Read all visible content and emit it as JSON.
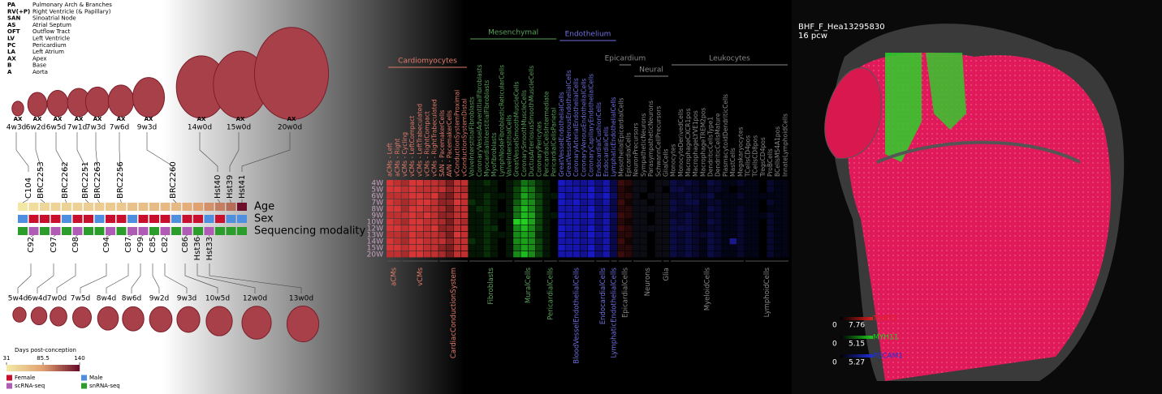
{
  "abbreviations": [
    {
      "abbr": "PA",
      "meaning": "Pulmonary Arch & Branches"
    },
    {
      "abbr": "RV(+P)",
      "meaning": "Right Ventricle (& Papillary)"
    },
    {
      "abbr": "SAN",
      "meaning": "Sinoatrial Node"
    },
    {
      "abbr": "AS",
      "meaning": "Atrial Septum"
    },
    {
      "abbr": "OFT",
      "meaning": "Outflow Tract"
    },
    {
      "abbr": "LV",
      "meaning": "Left Ventricle"
    },
    {
      "abbr": "PC",
      "meaning": "Pericardium"
    },
    {
      "abbr": "LA",
      "meaning": "Left Atrium"
    },
    {
      "abbr": "AX",
      "meaning": "Apex"
    },
    {
      "abbr": "B",
      "meaning": "Base"
    },
    {
      "abbr": "A",
      "meaning": "Aorta"
    }
  ],
  "samples": [
    {
      "id": "C104",
      "stage": "4w3d",
      "days": 31,
      "sex": "Male",
      "modality": "snRNA-seq",
      "label_side": "above",
      "view": "AX"
    },
    {
      "id": "C92",
      "stage": "5w4d",
      "days": 39,
      "sex": "Female",
      "modality": "scRNA-seq",
      "label_side": "below"
    },
    {
      "id": "BRC2253",
      "stage": "6w2d",
      "days": 44,
      "sex": "Female",
      "modality": "snRNA-seq",
      "label_side": "above",
      "view": "AX"
    },
    {
      "id": "C97",
      "stage": "6w4d",
      "days": 46,
      "sex": "Female",
      "modality": "scRNA-seq",
      "label_side": "below"
    },
    {
      "id": "BRC2262",
      "stage": "6w5d",
      "days": 47,
      "sex": "Male",
      "modality": "snRNA-seq",
      "label_side": "above",
      "view": "AX"
    },
    {
      "id": "C98",
      "stage": "7w0d",
      "days": 49,
      "sex": "Female",
      "modality": "scRNA-seq",
      "label_side": "below"
    },
    {
      "id": "BRC2251",
      "stage": "7w1d",
      "days": 50,
      "sex": "Female",
      "modality": "snRNA-seq",
      "label_side": "above",
      "view": "AX"
    },
    {
      "id": "BRC2263",
      "stage": "7w3d",
      "days": 52,
      "sex": "Male",
      "modality": "snRNA-seq",
      "label_side": "above",
      "view": "AX"
    },
    {
      "id": "C94",
      "stage": "7w5d",
      "days": 54,
      "sex": "Female",
      "modality": "scRNA-seq",
      "label_side": "below"
    },
    {
      "id": "BRC2256",
      "stage": "7w6d",
      "days": 55,
      "sex": "Female",
      "modality": "snRNA-seq",
      "label_side": "above",
      "view": "AX"
    },
    {
      "id": "C87",
      "stage": "8w4d",
      "days": 60,
      "sex": "Male",
      "modality": "scRNA-seq",
      "label_side": "below"
    },
    {
      "id": "C99",
      "stage": "8w6d",
      "days": 62,
      "sex": "Female",
      "modality": "scRNA-seq",
      "label_side": "below"
    },
    {
      "id": "C85",
      "stage": "9w2d",
      "days": 65,
      "sex": "Female",
      "modality": "snRNA-seq",
      "label_side": "below"
    },
    {
      "id": "C82",
      "stage": "9w3d",
      "days": 66,
      "sex": "Female",
      "modality": "scRNA-seq",
      "label_side": "below"
    },
    {
      "id": "BRC2260",
      "stage": "9w3d",
      "days": 66,
      "sex": "Male",
      "modality": "snRNA-seq",
      "label_side": "above",
      "view": "AX"
    },
    {
      "id": "C86",
      "stage": "10w5d",
      "days": 75,
      "sex": "Female",
      "modality": "scRNA-seq",
      "label_side": "below"
    },
    {
      "id": "Hst36",
      "stage": "12w0d",
      "days": 84,
      "sex": "Female",
      "modality": "snRNA-seq",
      "label_side": "below"
    },
    {
      "id": "Hst33",
      "stage": "13w0d",
      "days": 91,
      "sex": "Male",
      "modality": "scRNA-seq",
      "label_side": "below"
    },
    {
      "id": "Hst40",
      "stage": "14w0d",
      "days": 98,
      "sex": "Female",
      "modality": "snRNA-seq",
      "label_side": "above",
      "view": "AX"
    },
    {
      "id": "Hst39",
      "stage": "15w0d",
      "days": 105,
      "sex": "Male",
      "modality": "snRNA-seq",
      "label_side": "above",
      "view": "AX"
    },
    {
      "id": "Hst41",
      "stage": "20w0d",
      "days": 140,
      "sex": "Male",
      "modality": "snRNA-seq",
      "label_side": "above",
      "view": "AX"
    }
  ],
  "track_labels": [
    "Age",
    "Sex",
    "Sequencing modality"
  ],
  "age_scale": {
    "title": "Days post-conception",
    "ticks": [
      31,
      85.5,
      140
    ],
    "colors": [
      "#f3e7a6",
      "#e0a070",
      "#6b0f2a"
    ]
  },
  "sex_legend": [
    {
      "label": "Female",
      "color": "#c8102e"
    },
    {
      "label": "Male",
      "color": "#4f8fe0"
    }
  ],
  "modality_legend": [
    {
      "label": "scRNA-seq",
      "color": "#b05bb5"
    },
    {
      "label": "snRNA-seq",
      "color": "#2a9d2a"
    }
  ],
  "heatmap": {
    "rows": [
      "4W",
      "5W",
      "6W",
      "7W",
      "8W",
      "9W",
      "10W",
      "12W",
      "13W",
      "14W",
      "15W",
      "20W"
    ],
    "groups": [
      {
        "name": "Cardiomyocytes",
        "color": [
          240,
          60,
          60
        ],
        "label_color": "#e07a6a",
        "subgroups": [
          {
            "name": "aCMs",
            "columns": [
              "aCMs - Left",
              "aCMs - Right"
            ]
          },
          {
            "name": "vCMs",
            "columns": [
              "vCMs - Cycling",
              "vCMs - LeftCompact",
              "vCMs - LeftTrabeculated",
              "vCMs - RightCompact",
              "vCMs - RightTrabeculated"
            ]
          },
          {
            "name": "CardiacConductionSystem",
            "columns": [
              "SAN - PacemakerCells",
              "AVN - PacemakerCells",
              "vConductionSystemProximal",
              "vConductionSystemDistal"
            ]
          }
        ]
      },
      {
        "name": "Mesenchymal",
        "color": [
          40,
          230,
          40
        ],
        "label_color": "#5aa05a",
        "subgroups": [
          {
            "name": "Fibroblasts",
            "columns": [
              "ValveInterstitialFibroblasts",
              "CoronaryVesselAdventitialFibroblasts",
              "MyocardialInterstitialFibroblasts",
              "Myofibroblasts",
              "LymphNodeFibroblasticReticularCells",
              "ValveInterstitialCells"
            ]
          },
          {
            "name": "MuralCells",
            "columns": [
              "GreatVesselSmoothMuscleCells",
              "CoronarySmoothMuscleCells",
              "DuctusArteriosusSmoothMuscleCells",
              "CoronaryPericytes"
            ]
          },
          {
            "name": "PericardialCells",
            "columns": [
              "PericardialCellsIntermediate",
              "PericardialCellsParietal"
            ]
          }
        ]
      },
      {
        "name": "Endothelium",
        "color": [
          30,
          30,
          245
        ],
        "label_color": "#7070e0",
        "subgroups": [
          {
            "name": "BloodVesselEndothelialCells",
            "columns": [
              "GreatVesselEndothelialCells",
              "GreatVesselVenousEndothelialCells",
              "CoronaryArterialEndothelialCells",
              "CoronaryVenousEndothelialCells",
              "CoronaryCapillaryEndothelialCells"
            ]
          },
          {
            "name": "EndocardialCells",
            "columns": [
              "EndocardialCushionCells",
              "EndocardialCells"
            ]
          },
          {
            "name": "LymphaticEndothelialCells",
            "columns": [
              "LymphaticEndothelialCells"
            ]
          }
        ]
      },
      {
        "name": "Epicardium",
        "color": [
          200,
          40,
          40
        ],
        "label_color": "#888888",
        "subgroups": [
          {
            "name": "EpicardialCells",
            "columns": [
              "MesothelialEpicardialCells",
              "EpicardialCells"
            ]
          }
        ]
      },
      {
        "name": "Neural",
        "color": [
          120,
          120,
          200
        ],
        "label_color": "#888888",
        "subgroups": [
          {
            "name": "Neurons",
            "columns": [
              "NeuronPrecursors",
              "SympatheticNeurons",
              "ParasympatheticNeurons",
              "SchwannCellPrecursors"
            ]
          },
          {
            "name": "Glia",
            "columns": [
              "GlialCells"
            ]
          }
        ]
      },
      {
        "name": "Leukocytes",
        "color": [
          40,
          40,
          230
        ],
        "label_color": "#888888",
        "subgroups": [
          {
            "name": "MyeloidCells",
            "columns": [
              "Monocytes",
              "MonocyteDerivedCells",
              "MacrophageCXCR1pos",
              "MacrophageLYVE1pos",
              "MacrophageTREM2pos",
              "DendriticCellsType1",
              "DendriticCellsMature",
              "PlasmacytoidDendriticCells",
              "MastCells",
              "Megakaryocytes"
            ]
          },
          {
            "name": "LymphoidCells",
            "columns": [
              "TCellsCD4pos",
              "TCellsCD8pos",
              "TregsCD4pos",
              "ProBCells",
              "BCellsMS4A1pos",
              "InnateLymphoidCells"
            ]
          }
        ]
      }
    ],
    "values": [
      [
        0.9,
        0.8,
        0.7,
        0.9,
        0.9,
        0.8,
        0.8,
        0.7,
        0.5,
        0.8,
        0.8,
        0.1,
        0.1,
        0.2,
        0.1,
        0,
        0.1,
        0.2,
        0.5,
        0.4,
        0.2,
        0.1,
        0,
        0.8,
        0.7,
        0.6,
        0.6,
        0.7,
        0.5,
        0.7,
        0.3,
        0.3,
        0.2,
        0.1,
        0.1,
        0,
        0.1,
        0.1,
        0.3,
        0.2,
        0.3,
        0.2,
        0.1,
        0.3,
        0.2,
        0.1,
        0.1,
        0.2,
        0.1,
        0.1,
        0,
        0.2,
        0.1,
        0.1
      ],
      [
        0.9,
        0.9,
        0.8,
        0.9,
        0.8,
        0.8,
        0.8,
        0.8,
        0.6,
        0.8,
        0.7,
        0.1,
        0.1,
        0.1,
        0.1,
        0,
        0.1,
        0.3,
        0.6,
        0.5,
        0.2,
        0.1,
        0,
        0.7,
        0.7,
        0.7,
        0.6,
        0.8,
        0.5,
        0.7,
        0.3,
        0.2,
        0.1,
        0.1,
        0.1,
        0,
        0.1,
        0,
        0.3,
        0.3,
        0.2,
        0.2,
        0.1,
        0.2,
        0.2,
        0.1,
        0,
        0.1,
        0.1,
        0.1,
        0,
        0.2,
        0.1,
        0.1
      ],
      [
        0.8,
        0.8,
        0.8,
        0.9,
        0.9,
        0.8,
        0.9,
        0.6,
        0.5,
        0.8,
        0.8,
        0.1,
        0.1,
        0.2,
        0.1,
        0.1,
        0.1,
        0.3,
        0.7,
        0.5,
        0.3,
        0.1,
        0.1,
        0.8,
        0.6,
        0.7,
        0.7,
        0.8,
        0.6,
        0.8,
        0.4,
        0.2,
        0.2,
        0.1,
        0,
        0.1,
        0.1,
        0.1,
        0.2,
        0.2,
        0.3,
        0.2,
        0.2,
        0.3,
        0.1,
        0.1,
        0.1,
        0.2,
        0.1,
        0.1,
        0.1,
        0.1,
        0.1,
        0.1
      ],
      [
        0.9,
        0.8,
        0.7,
        0.8,
        0.9,
        0.9,
        0.8,
        0.6,
        0.6,
        0.9,
        0.8,
        0.2,
        0.1,
        0.2,
        0.1,
        0,
        0.1,
        0.4,
        0.7,
        0.6,
        0.3,
        0.1,
        0,
        0.8,
        0.7,
        0.8,
        0.6,
        0.7,
        0.5,
        0.7,
        0.3,
        0.3,
        0.1,
        0.1,
        0.1,
        0,
        0.1,
        0.1,
        0.3,
        0.2,
        0.3,
        0.3,
        0.1,
        0.2,
        0.2,
        0.1,
        0.1,
        0.1,
        0.1,
        0.1,
        0,
        0.2,
        0.1,
        0.1
      ],
      [
        0.9,
        0.9,
        0.7,
        0.9,
        0.9,
        0.8,
        0.8,
        0.7,
        0.5,
        0.8,
        0.8,
        0.1,
        0.2,
        0.2,
        0.1,
        0,
        0.1,
        0.5,
        0.8,
        0.6,
        0.3,
        0.1,
        0,
        0.7,
        0.7,
        0.7,
        0.6,
        0.8,
        0.5,
        0.6,
        0.3,
        0.2,
        0.2,
        0.1,
        0.1,
        0.1,
        0.1,
        0.1,
        0.3,
        0.2,
        0.2,
        0.2,
        0.1,
        0.3,
        0.2,
        0.1,
        0.1,
        0.2,
        0.1,
        0.1,
        0,
        0.1,
        0.1,
        0.1
      ],
      [
        0.8,
        0.8,
        0.8,
        0.9,
        0.8,
        0.9,
        0.8,
        0.6,
        0.6,
        0.8,
        0.8,
        0.1,
        0.1,
        0.2,
        0.1,
        0.1,
        0.1,
        0.5,
        0.8,
        0.7,
        0.3,
        0.1,
        0.1,
        0.8,
        0.7,
        0.7,
        0.7,
        0.8,
        0.5,
        0.7,
        0.4,
        0.3,
        0.2,
        0.1,
        0.1,
        0,
        0.1,
        0.1,
        0.2,
        0.2,
        0.3,
        0.2,
        0.1,
        0.2,
        0.2,
        0.1,
        0.1,
        0.2,
        0.1,
        0.1,
        0.1,
        0.2,
        0.1,
        0.1
      ],
      [
        0.9,
        0.8,
        0.7,
        0.9,
        0.9,
        0.8,
        0.8,
        0.7,
        0.5,
        0.8,
        0.7,
        0.1,
        0.1,
        0.2,
        0.1,
        0,
        0.1,
        0.9,
        0.9,
        0.7,
        0.3,
        0.1,
        0,
        0.7,
        0.7,
        0.7,
        0.6,
        0.7,
        0.5,
        0.7,
        0.3,
        0.2,
        0.1,
        0.1,
        0.1,
        0,
        0.1,
        0.1,
        0.3,
        0.2,
        0.3,
        0.2,
        0.1,
        0.3,
        0.2,
        0.1,
        0.1,
        0.2,
        0.1,
        0.1,
        0,
        0.2,
        0.1,
        0.1
      ],
      [
        0.9,
        0.9,
        0.8,
        0.9,
        0.9,
        0.8,
        0.9,
        0.6,
        0.6,
        0.8,
        0.8,
        0.1,
        0.1,
        0.2,
        0.2,
        0,
        0.1,
        0.6,
        0.8,
        0.6,
        0.3,
        0.1,
        0,
        0.8,
        0.7,
        0.7,
        0.6,
        0.8,
        0.5,
        0.7,
        0.3,
        0.3,
        0.2,
        0.1,
        0.1,
        0.1,
        0.1,
        0.1,
        0.3,
        0.3,
        0.3,
        0.2,
        0.1,
        0.2,
        0.2,
        0.1,
        0.1,
        0.2,
        0.1,
        0.1,
        0,
        0.2,
        0.1,
        0.1
      ],
      [
        0.8,
        0.8,
        0.7,
        0.9,
        0.8,
        0.8,
        0.8,
        0.7,
        0.5,
        0.9,
        0.8,
        0.1,
        0.1,
        0.2,
        0.1,
        0.1,
        0.1,
        0.6,
        0.7,
        0.6,
        0.2,
        0.1,
        0,
        0.8,
        0.6,
        0.7,
        0.6,
        0.8,
        0.6,
        0.7,
        0.3,
        0.2,
        0.2,
        0.1,
        0.1,
        0,
        0.1,
        0.1,
        0.3,
        0.2,
        0.3,
        0.2,
        0.2,
        0.3,
        0.2,
        0.1,
        0.1,
        0.2,
        0.1,
        0.1,
        0,
        0.2,
        0.1,
        0.1
      ],
      [
        0.9,
        0.8,
        0.7,
        0.9,
        0.9,
        0.8,
        0.8,
        0.8,
        0.6,
        0.8,
        0.8,
        0.2,
        0.1,
        0.2,
        0.1,
        0,
        0.1,
        0.6,
        0.7,
        0.6,
        0.3,
        0.1,
        0,
        0.7,
        0.7,
        0.7,
        0.6,
        0.7,
        0.5,
        0.7,
        0.3,
        0.3,
        0.1,
        0.1,
        0.1,
        0,
        0.1,
        0.1,
        0.3,
        0.2,
        0.3,
        0.2,
        0.1,
        0.3,
        0.2,
        0.1,
        0.6,
        0.2,
        0.1,
        0.1,
        0,
        0.2,
        0.1,
        0.1
      ],
      [
        0.9,
        0.9,
        0.8,
        0.9,
        0.9,
        0.8,
        0.8,
        0.6,
        0.5,
        0.8,
        0.8,
        0.1,
        0.1,
        0.2,
        0.1,
        0,
        0.1,
        0.5,
        0.7,
        0.6,
        0.3,
        0.1,
        0,
        0.8,
        0.7,
        0.7,
        0.6,
        0.8,
        0.5,
        0.7,
        0.3,
        0.2,
        0.2,
        0.1,
        0.1,
        0,
        0.1,
        0.1,
        0.3,
        0.2,
        0.3,
        0.2,
        0.1,
        0.3,
        0.2,
        0.1,
        0.1,
        0.2,
        0.1,
        0.1,
        0,
        0.2,
        0.1,
        0.1
      ],
      [
        0.8,
        0.8,
        0.7,
        0.9,
        0.9,
        0.8,
        0.8,
        0.7,
        0.5,
        0.8,
        0.8,
        0.1,
        0.1,
        0.2,
        0.1,
        0,
        0.1,
        0.6,
        0.8,
        0.6,
        0.3,
        0.1,
        0,
        0.7,
        0.7,
        0.7,
        0.6,
        0.8,
        0.5,
        0.7,
        0.3,
        0.3,
        0.2,
        0.1,
        0.1,
        0,
        0.1,
        0.1,
        0.3,
        0.2,
        0.3,
        0.2,
        0.1,
        0.3,
        0.2,
        0.1,
        0.1,
        0.2,
        0.1,
        0.1,
        0,
        0.2,
        0.1,
        0.1
      ]
    ]
  },
  "image_panel": {
    "title": "BHF_F_Hea13295830",
    "subtitle": "16 pcw",
    "channels": [
      {
        "name": "TNNT2",
        "color": "#e0201e",
        "min": 0,
        "max": 7.76
      },
      {
        "name": "MYH11",
        "color": "#20d020",
        "min": 0,
        "max": 5.15
      },
      {
        "name": "PECAM1",
        "color": "#2030e0",
        "min": 0,
        "max": 5.27
      }
    ]
  }
}
